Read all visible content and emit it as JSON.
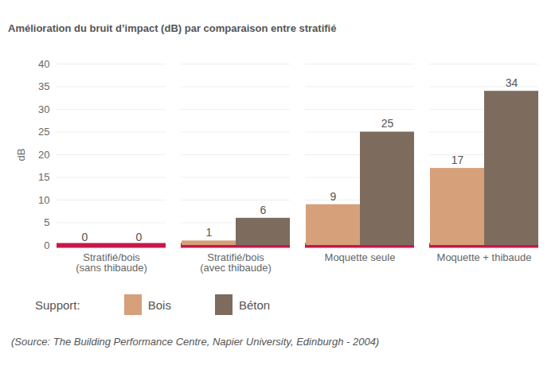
{
  "chart_data": {
    "type": "bar",
    "title": "Amélioration du bruit d’impact (dB) par comparaison entre stratifié",
    "y_label": "dB",
    "categories": [
      "Stratifié/bois\n(sans thibaude)",
      "Stratifié/bois\n(avec thibaude)",
      "Moquette seule",
      "Moquette + thibaude"
    ],
    "series": [
      {
        "name": "Bois",
        "color": "#d6a07a",
        "values": [
          0,
          1,
          9,
          17
        ]
      },
      {
        "name": "Béton",
        "color": "#7d6c5e",
        "values": [
          0,
          6,
          25,
          34
        ]
      }
    ],
    "ylim": [
      0,
      40
    ],
    "yticks": [
      0,
      5,
      10,
      15,
      20,
      25,
      30,
      35,
      40
    ],
    "grid": true,
    "data_labels": true,
    "legend": "bottom-left",
    "legend_title": "Support:",
    "annotations": [
      "(Source: The Building Performance Centre, Napier University, Edinburgh - 2004)"
    ]
  }
}
